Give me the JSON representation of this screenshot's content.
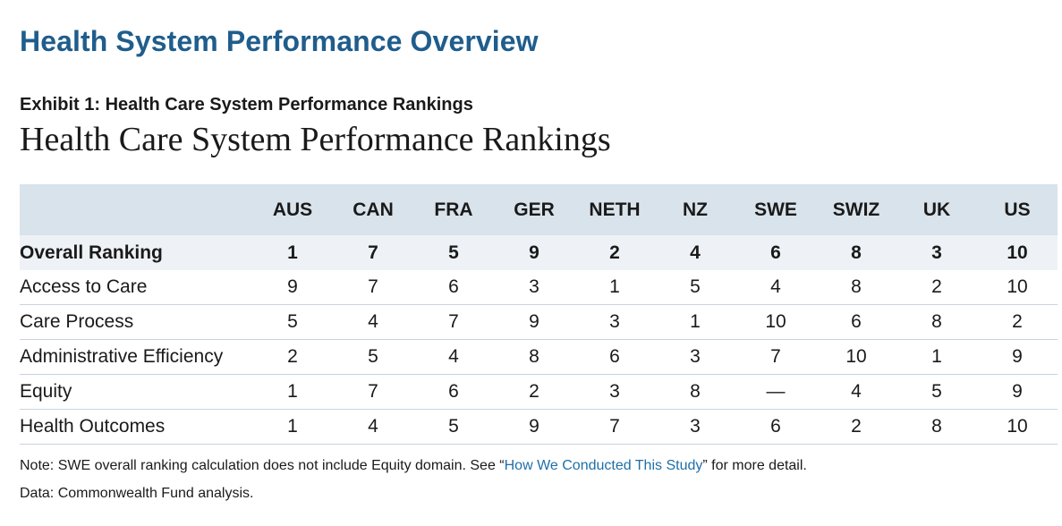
{
  "page_title": "Health System Performance Overview",
  "exhibit_label": "Exhibit 1: Health Care System Performance Rankings",
  "exhibit_title": "Health Care System Performance Rankings",
  "table": {
    "columns": [
      "AUS",
      "CAN",
      "FRA",
      "GER",
      "NETH",
      "NZ",
      "SWE",
      "SWIZ",
      "UK",
      "US"
    ],
    "rows": [
      {
        "label": "Overall Ranking",
        "values": [
          "1",
          "7",
          "5",
          "9",
          "2",
          "4",
          "6",
          "8",
          "3",
          "10"
        ]
      },
      {
        "label": "Access to Care",
        "values": [
          "9",
          "7",
          "6",
          "3",
          "1",
          "5",
          "4",
          "8",
          "2",
          "10"
        ]
      },
      {
        "label": "Care Process",
        "values": [
          "5",
          "4",
          "7",
          "9",
          "3",
          "1",
          "10",
          "6",
          "8",
          "2"
        ]
      },
      {
        "label": "Administrative Efficiency",
        "values": [
          "2",
          "5",
          "4",
          "8",
          "6",
          "3",
          "7",
          "10",
          "1",
          "9"
        ]
      },
      {
        "label": "Equity",
        "values": [
          "1",
          "7",
          "6",
          "2",
          "3",
          "8",
          "—",
          "4",
          "5",
          "9"
        ]
      },
      {
        "label": "Health Outcomes",
        "values": [
          "1",
          "4",
          "5",
          "9",
          "7",
          "3",
          "6",
          "2",
          "8",
          "10"
        ]
      }
    ]
  },
  "note": {
    "prefix": "Note: SWE overall ranking calculation does not include Equity domain. See “",
    "link_text": "How We Conducted This Study",
    "suffix": "” for more detail."
  },
  "source": "Data: Commonwealth Fund analysis.",
  "colors": {
    "title": "#1f5d8c",
    "header_bg": "#d9e3ec",
    "overall_bg": "#eef2f6",
    "link": "#1f6fa8"
  }
}
